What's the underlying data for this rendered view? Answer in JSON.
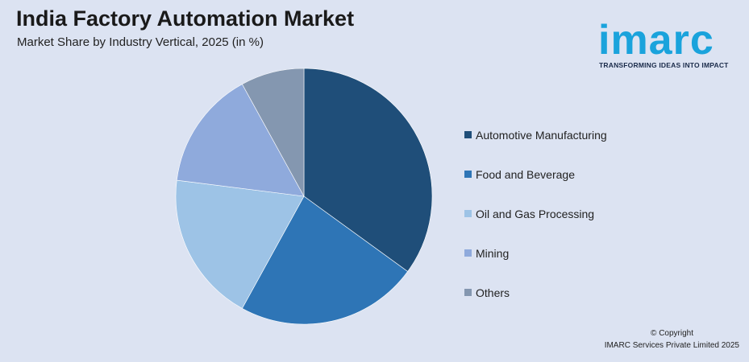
{
  "header": {
    "title": "India Factory Automation Market",
    "subtitle": "Market Share by Industry Vertical, 2025 (in %)"
  },
  "logo": {
    "wordmark": "imarc",
    "tagline": "TRANSFORMING IDEAS INTO IMPACT",
    "color": "#1aa3dc"
  },
  "chart_data": {
    "type": "pie",
    "title": "India Factory Automation Market",
    "subtitle": "Market Share by Industry Vertical, 2025 (in %)",
    "unit": "%",
    "legend_position": "right",
    "start_angle": "12 o'clock",
    "direction": "clockwise",
    "slices": [
      {
        "label": "Automotive Manufacturing",
        "value": 35,
        "color": "#1f4e79"
      },
      {
        "label": "Food and Beverage",
        "value": 23,
        "color": "#2e75b6"
      },
      {
        "label": "Oil and Gas Processing",
        "value": 19,
        "color": "#9dc3e6"
      },
      {
        "label": "Mining",
        "value": 15,
        "color": "#8faadc"
      },
      {
        "label": "Others",
        "value": 8,
        "color": "#8497b0"
      }
    ]
  },
  "footer": {
    "copyright": "© Copyright",
    "company": "IMARC Services Private Limited 2025"
  }
}
